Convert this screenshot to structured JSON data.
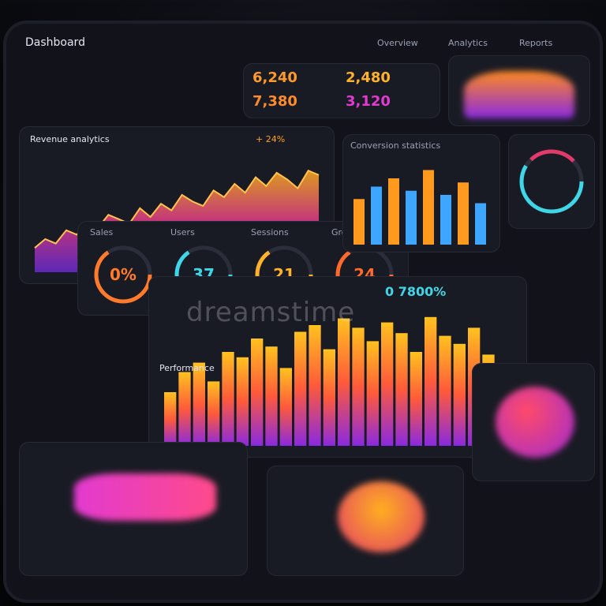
{
  "header": {
    "title": "Dashboard",
    "tabs": [
      "Overview",
      "Analytics",
      "Reports"
    ]
  },
  "line_panel": {
    "title": "Revenue analytics",
    "badge": "+ 24%",
    "values": [
      22,
      30,
      26,
      38,
      34,
      45,
      40,
      52,
      48,
      44,
      58,
      50,
      62,
      56,
      70,
      64,
      60,
      74,
      68,
      80,
      72,
      86,
      78,
      90,
      84,
      76,
      92,
      88
    ]
  },
  "gauges": [
    {
      "label": "Sales",
      "value": "0%",
      "color": "#ff7a2a"
    },
    {
      "label": "Users",
      "value": "37",
      "color": "#3fd6e8"
    },
    {
      "label": "Sessions",
      "value": "21",
      "color": "#ffb12a"
    },
    {
      "label": "Growth",
      "value": "24",
      "color": "#ff6a2a"
    }
  ],
  "bar_panel": {
    "title": "Performance",
    "badge": "0 7800%",
    "values": [
      40,
      55,
      62,
      48,
      70,
      66,
      80,
      74,
      58,
      85,
      90,
      72,
      95,
      88,
      78,
      92,
      84,
      70,
      96,
      82,
      76,
      88,
      68,
      60
    ]
  },
  "right_bars": {
    "title": "Conversion statistics",
    "values": [
      55,
      70,
      80,
      65,
      90,
      60,
      75,
      50
    ]
  },
  "kpis": [
    "6,240",
    "2,480",
    "7,380",
    "3,120"
  ],
  "watermark": "dreamstime",
  "colors": {
    "orange": "#ffa21f",
    "magenta": "#e23ad0",
    "purple": "#7a2ae0",
    "cyan": "#3fd6e8",
    "panel": "#191b24"
  }
}
